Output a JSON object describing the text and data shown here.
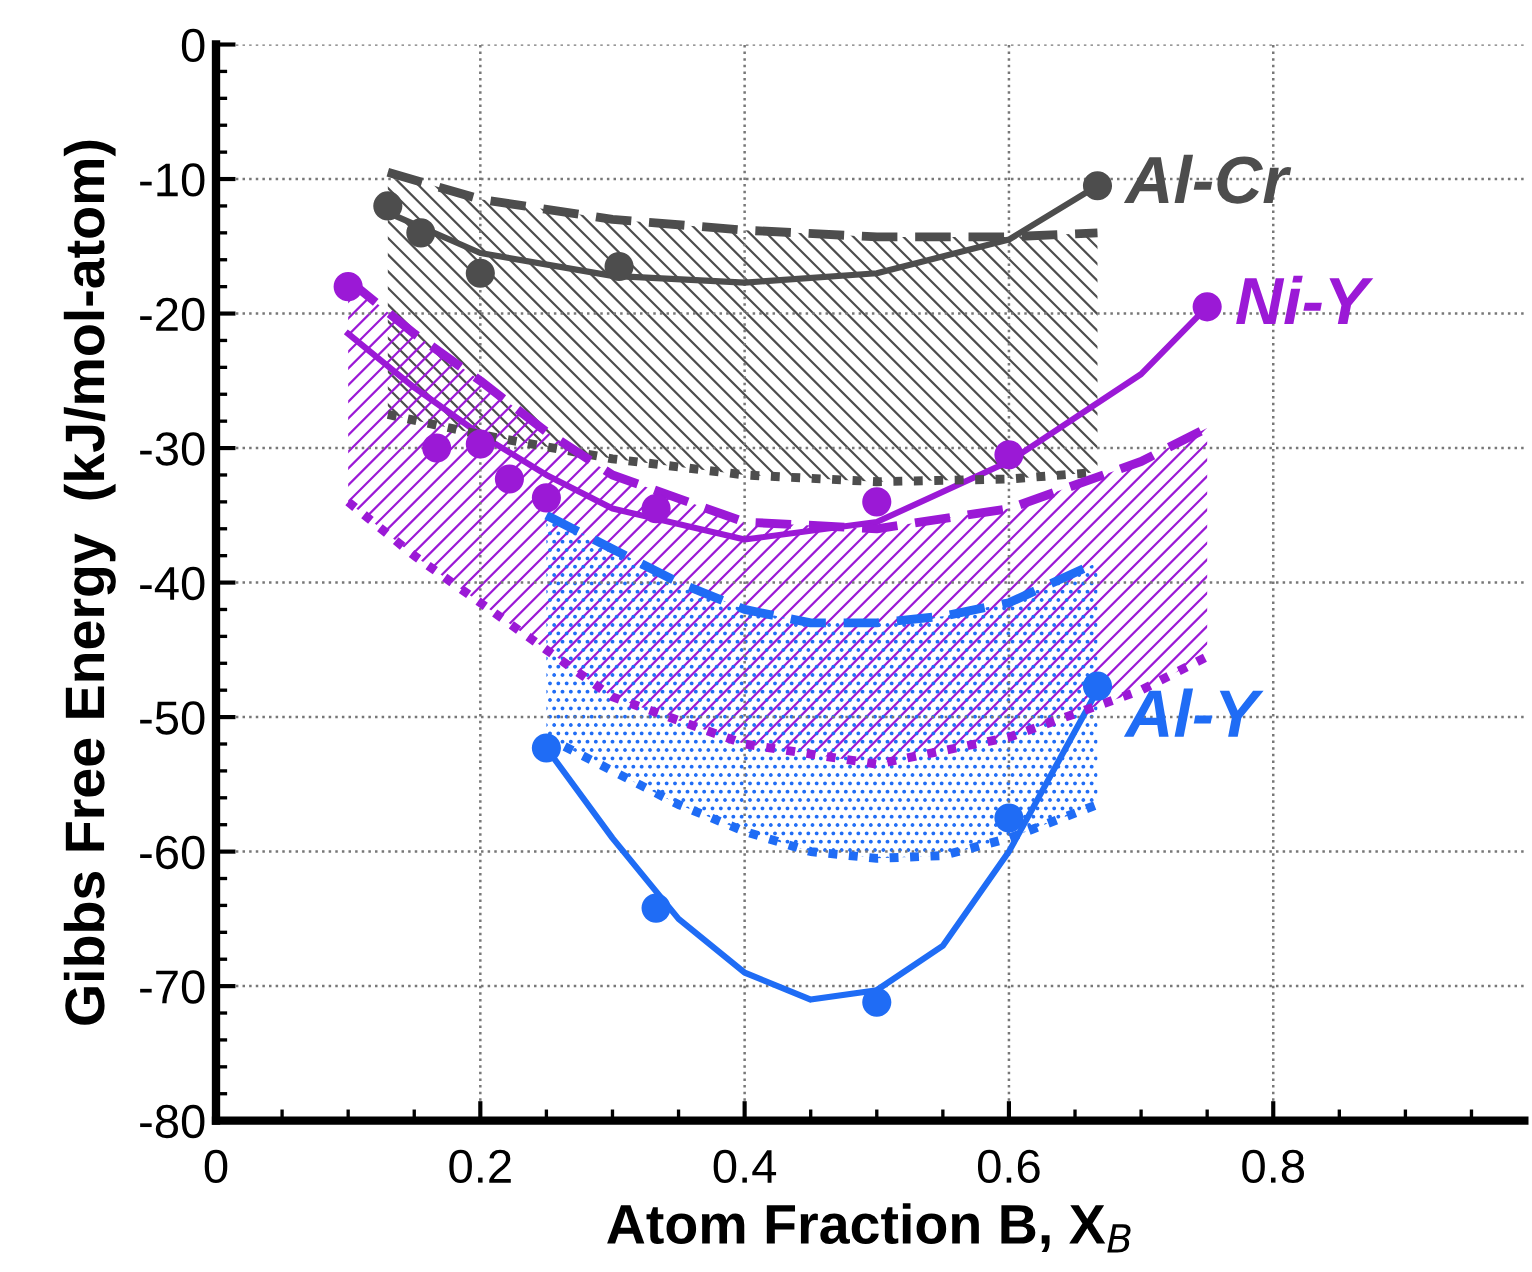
{
  "chart_data": {
    "type": "line",
    "xlabel": "Atom Fraction B, X$_{B}$",
    "ylabel": "Gibbs Free Energy  (kJ/mol-atom)",
    "xlim": [
      0,
      0.99
    ],
    "ylim": [
      -80,
      0
    ],
    "xticks": [
      0,
      0.2,
      0.4,
      0.6,
      0.8
    ],
    "yticks": [
      -80,
      -70,
      -60,
      -50,
      -40,
      -30,
      -20,
      -10,
      0
    ],
    "grid": true,
    "legend": false,
    "series": [
      {
        "line_style": "solid",
        "color": "#4d4d4d",
        "x": [
          0.13,
          0.2,
          0.3,
          0.4,
          0.5,
          0.6,
          0.667
        ],
        "values": [
          -12.5,
          -15.5,
          -17.2,
          -17.7,
          -17.0,
          -14.5,
          -10.5
        ],
        "upper": [
          -9.5,
          -11.5,
          -13.0,
          -13.8,
          -14.3,
          -14.3,
          -14.0
        ],
        "lower": [
          -27.5,
          -29.0,
          -30.8,
          -32.0,
          -32.5,
          -32.3,
          -31.8
        ]
      },
      {
        "line_style": "solid",
        "color": "#9b19d6",
        "x": [
          0.1,
          0.15,
          0.2,
          0.25,
          0.3,
          0.4,
          0.5,
          0.6,
          0.7,
          0.75
        ],
        "values": [
          -21.5,
          -25.5,
          -29.0,
          -32.0,
          -34.5,
          -36.8,
          -35.5,
          -31.0,
          -24.5,
          -19.5
        ],
        "upper": [
          -17.5,
          -21.5,
          -25.0,
          -28.8,
          -32.0,
          -35.5,
          -36.0,
          -34.5,
          -31.0,
          -28.5
        ],
        "lower": [
          -34.0,
          -38.0,
          -41.5,
          -45.0,
          -48.5,
          -52.0,
          -53.5,
          -51.5,
          -48.0,
          -45.5
        ]
      },
      {
        "line_style": "solid",
        "color": "#1f6cf5",
        "x": [
          0.25,
          0.3,
          0.35,
          0.4,
          0.45,
          0.5,
          0.55,
          0.6,
          0.667
        ],
        "values": [
          -52.3,
          -59.0,
          -65.0,
          -69.0,
          -71.0,
          -70.3,
          -67.0,
          -60.0,
          -48.0
        ],
        "upper": [
          -35.0,
          -37.5,
          -40.0,
          -42.0,
          -43.0,
          -43.0,
          -42.5,
          -41.5,
          -38.5
        ],
        "lower": [
          -51.5,
          -54.0,
          -56.5,
          -58.5,
          -60.0,
          -60.5,
          -60.3,
          -59.0,
          -56.5
        ]
      },
      {
        "line_style": "dashed",
        "color": "#4d4d4d",
        "x": [
          0.13,
          0.2,
          0.3,
          0.4,
          0.5,
          0.6,
          0.667
        ],
        "values": [
          -9.5,
          -11.5,
          -13.0,
          -13.8,
          -14.3,
          -14.3,
          -14.0
        ]
      },
      {
        "line_style": "dotted",
        "color": "#4d4d4d",
        "x": [
          0.13,
          0.2,
          0.3,
          0.4,
          0.5,
          0.6,
          0.667
        ],
        "values": [
          -27.5,
          -29.0,
          -30.8,
          -32.0,
          -32.5,
          -32.3,
          -31.8
        ]
      },
      {
        "line_style": "dashed",
        "color": "#9b19d6",
        "x": [
          0.1,
          0.15,
          0.2,
          0.25,
          0.3,
          0.4,
          0.5,
          0.6,
          0.7,
          0.75
        ],
        "values": [
          -17.5,
          -21.5,
          -25.0,
          -28.8,
          -32.0,
          -35.5,
          -36.0,
          -34.5,
          -31.0,
          -28.5
        ]
      },
      {
        "line_style": "dotted",
        "color": "#9b19d6",
        "x": [
          0.1,
          0.15,
          0.2,
          0.25,
          0.3,
          0.4,
          0.5,
          0.6,
          0.7,
          0.75
        ],
        "values": [
          -34.0,
          -38.0,
          -41.5,
          -45.0,
          -48.5,
          -52.0,
          -53.5,
          -51.5,
          -48.0,
          -45.5
        ]
      },
      {
        "line_style": "dashed",
        "color": "#1f6cf5",
        "x": [
          0.25,
          0.3,
          0.35,
          0.4,
          0.45,
          0.5,
          0.55,
          0.6,
          0.667
        ],
        "values": [
          -35.0,
          -37.5,
          -40.0,
          -42.0,
          -43.0,
          -43.0,
          -42.5,
          -41.5,
          -38.5
        ]
      },
      {
        "line_style": "dotted",
        "color": "#1f6cf5",
        "x": [
          0.25,
          0.3,
          0.35,
          0.4,
          0.45,
          0.5,
          0.55,
          0.6,
          0.667
        ],
        "values": [
          -51.5,
          -54.0,
          -56.5,
          -58.5,
          -60.0,
          -60.5,
          -60.3,
          -59.0,
          -56.5
        ]
      },
      {
        "type": "scatter",
        "marker": "circle",
        "color": "#4d4d4d",
        "x": [
          0.13,
          0.155,
          0.2,
          0.305,
          0.667
        ],
        "values": [
          -12.0,
          -14.0,
          -17.0,
          -16.5,
          -10.5
        ]
      },
      {
        "type": "scatter",
        "marker": "circle",
        "color": "#9b19d6",
        "x": [
          0.1,
          0.167,
          0.2,
          0.222,
          0.25,
          0.333,
          0.5,
          0.6,
          0.75
        ],
        "values": [
          -18.0,
          -30.0,
          -29.7,
          -32.3,
          -33.7,
          -34.5,
          -34.0,
          -30.5,
          -19.5
        ]
      },
      {
        "type": "scatter",
        "marker": "circle",
        "color": "#1f6cf5",
        "x": [
          0.25,
          0.333,
          0.5,
          0.6,
          0.667
        ],
        "values": [
          -52.3,
          -64.2,
          -71.2,
          -57.5,
          -47.7
        ]
      }
    ],
    "annotations": [
      "Al-Cr",
      "Ni-Y",
      "Al-Y"
    ]
  }
}
